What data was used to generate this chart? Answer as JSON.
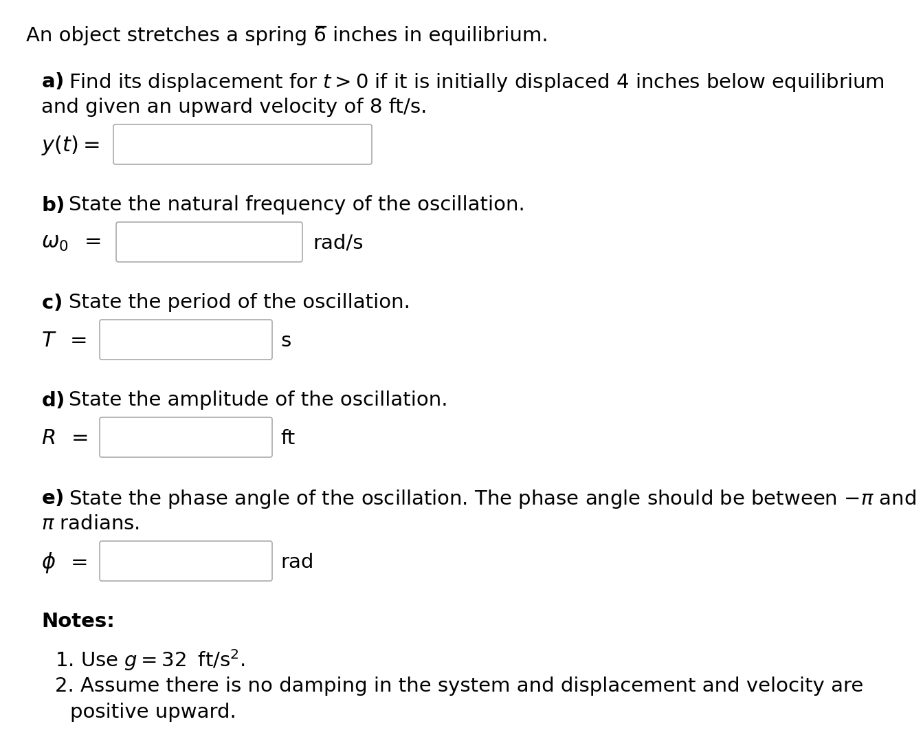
{
  "background_color": "#ffffff",
  "text_color": "#000000",
  "title_text": "An object stretches a spring 6̅ inches in equilibrium.",
  "part_a_bold": "a)",
  "part_a_line1": "Find its displacement for $t > 0$ if it is initially displaced 4 inches below equilibrium",
  "part_a_line2": "and given an upward velocity of 8 ft/s.",
  "part_b_line1": "State the natural frequency of the oscillation.",
  "part_b_unit": "rad/s",
  "part_c_line1": "State the period of the oscillation.",
  "part_c_unit": "s",
  "part_d_line1": "State the amplitude of the oscillation.",
  "part_d_unit": "ft",
  "part_e_line1": "State the phase angle of the oscillation. The phase angle should be between $-\\pi$ and",
  "part_e_line2": "$\\pi$ radians.",
  "part_e_unit": "rad",
  "notes_header": "Notes:",
  "note1_pre": "1. Use ",
  "note1_g": "$g = 32$",
  "note1_post": "  ft / s².",
  "note2_line1": "2. Assume there is no damping in the system and displacement and velocity are",
  "note2_line2": "   positive upward.",
  "font_size": 21,
  "box_edge_color": "#aaaaaa",
  "box_face_color": "#ffffff"
}
